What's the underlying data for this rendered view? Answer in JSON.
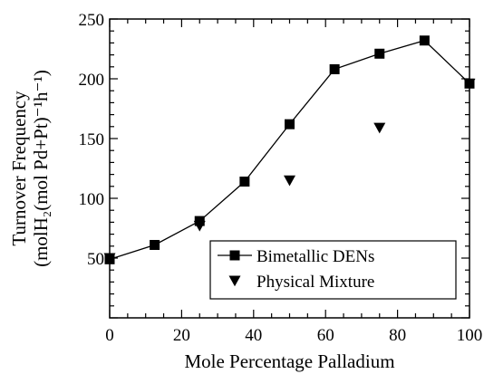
{
  "chart_data": {
    "type": "line",
    "title": "",
    "xlabel": "Mole Percentage Palladium",
    "ylabel_line1": "Turnover Frequency",
    "ylabel_line2": "(molH₂(mol Pd+Pt)⁻¹h⁻¹)",
    "xlim": [
      0,
      100
    ],
    "ylim": [
      0,
      250
    ],
    "x_ticks": [
      0,
      20,
      40,
      60,
      80,
      100
    ],
    "y_ticks": [
      50,
      100,
      150,
      200,
      250
    ],
    "grid": false,
    "legend_position": "bottom-right",
    "series": [
      {
        "name": "Bimetallic DENs",
        "marker": "square",
        "connected": true,
        "x": [
          0,
          12.5,
          25,
          37.5,
          50,
          62.5,
          75,
          87.5,
          100
        ],
        "y": [
          49,
          61,
          81,
          114,
          162,
          208,
          221,
          232,
          196
        ]
      },
      {
        "name": "Physical Mixture",
        "marker": "triangle-down",
        "connected": false,
        "x": [
          0,
          25,
          50,
          75,
          100
        ],
        "y": [
          50,
          77,
          115,
          159,
          196
        ]
      }
    ],
    "colors": {
      "axis": "#000000",
      "marker": "#000000",
      "line": "#000000"
    }
  }
}
